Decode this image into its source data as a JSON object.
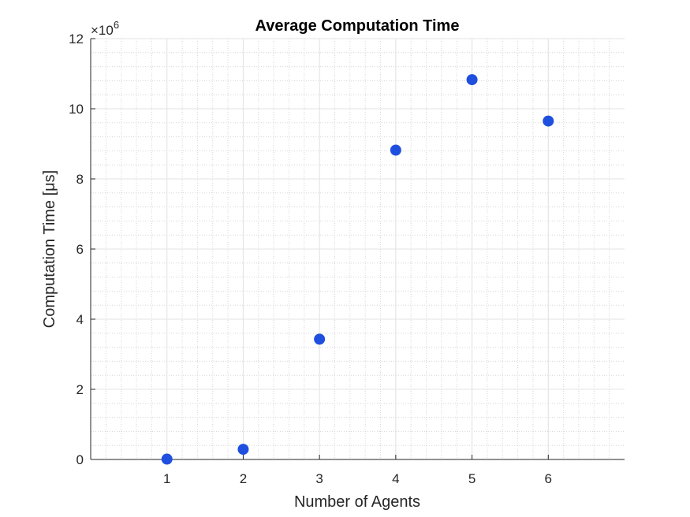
{
  "chart_data": {
    "type": "scatter",
    "title": "Average Computation Time",
    "xlabel": "Number of Agents",
    "ylabel": "Computation Time [μs]",
    "y_exponent_base": "×10",
    "y_exponent_power": "6",
    "y_multiplier": 1000000,
    "xlim": [
      0,
      7
    ],
    "ylim": [
      0,
      12
    ],
    "x_ticks": [
      1,
      2,
      3,
      4,
      5,
      6
    ],
    "y_ticks": [
      0,
      2,
      4,
      6,
      8,
      10,
      12
    ],
    "grid": true,
    "minor_grid": true,
    "marker_color": "#1f4fde",
    "series": [
      {
        "x": [
          1,
          2,
          3,
          4,
          5,
          6
        ],
        "y": [
          0.01,
          0.29,
          3.43,
          8.82,
          10.83,
          9.65
        ]
      }
    ]
  }
}
